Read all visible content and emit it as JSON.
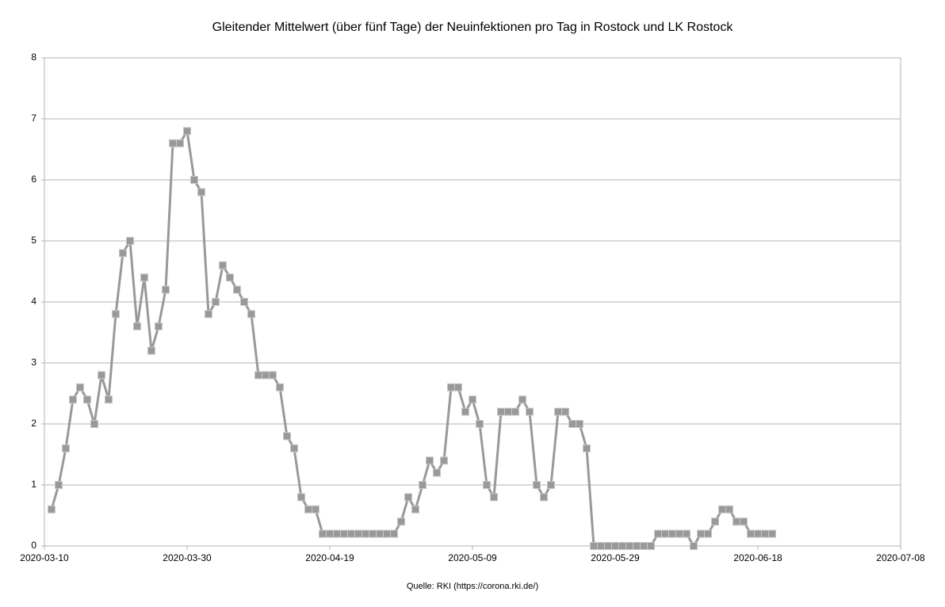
{
  "chart_data": {
    "type": "line",
    "title": "Gleitender Mittelwert (über fünf Tage) der Neuinfektionen pro Tag in Rostock und LK Rostock",
    "source": "Quelle: RKI (https://corona.rki.de/)",
    "x": [
      "2020-03-11",
      "2020-03-12",
      "2020-03-13",
      "2020-03-14",
      "2020-03-15",
      "2020-03-16",
      "2020-03-17",
      "2020-03-18",
      "2020-03-19",
      "2020-03-20",
      "2020-03-21",
      "2020-03-22",
      "2020-03-23",
      "2020-03-24",
      "2020-03-25",
      "2020-03-26",
      "2020-03-27",
      "2020-03-28",
      "2020-03-29",
      "2020-03-30",
      "2020-03-31",
      "2020-04-01",
      "2020-04-02",
      "2020-04-03",
      "2020-04-04",
      "2020-04-05",
      "2020-04-06",
      "2020-04-07",
      "2020-04-08",
      "2020-04-09",
      "2020-04-10",
      "2020-04-11",
      "2020-04-12",
      "2020-04-13",
      "2020-04-14",
      "2020-04-15",
      "2020-04-16",
      "2020-04-17",
      "2020-04-18",
      "2020-04-19",
      "2020-04-20",
      "2020-04-21",
      "2020-04-22",
      "2020-04-23",
      "2020-04-24",
      "2020-04-25",
      "2020-04-26",
      "2020-04-27",
      "2020-04-28",
      "2020-04-29",
      "2020-04-30",
      "2020-05-01",
      "2020-05-02",
      "2020-05-03",
      "2020-05-04",
      "2020-05-05",
      "2020-05-06",
      "2020-05-07",
      "2020-05-08",
      "2020-05-09",
      "2020-05-10",
      "2020-05-11",
      "2020-05-12",
      "2020-05-13",
      "2020-05-14",
      "2020-05-15",
      "2020-05-16",
      "2020-05-17",
      "2020-05-18",
      "2020-05-19",
      "2020-05-20",
      "2020-05-21",
      "2020-05-22",
      "2020-05-23",
      "2020-05-24",
      "2020-05-25",
      "2020-05-26",
      "2020-05-27",
      "2020-05-28",
      "2020-05-29",
      "2020-05-30",
      "2020-05-31",
      "2020-06-01",
      "2020-06-02",
      "2020-06-03",
      "2020-06-04",
      "2020-06-05",
      "2020-06-06",
      "2020-06-07",
      "2020-06-08",
      "2020-06-09",
      "2020-06-10",
      "2020-06-11",
      "2020-06-12",
      "2020-06-13",
      "2020-06-14",
      "2020-06-15",
      "2020-06-16",
      "2020-06-17",
      "2020-06-18",
      "2020-06-19",
      "2020-06-20"
    ],
    "values": [
      0.6,
      1.0,
      1.6,
      2.4,
      2.6,
      2.4,
      2.0,
      2.8,
      2.4,
      3.8,
      4.8,
      5.0,
      3.6,
      4.4,
      3.2,
      3.6,
      4.2,
      6.6,
      6.6,
      6.8,
      6.0,
      5.8,
      3.8,
      4.0,
      4.6,
      4.4,
      4.2,
      4.0,
      3.8,
      2.8,
      2.8,
      2.8,
      2.6,
      1.8,
      1.6,
      0.8,
      0.6,
      0.6,
      0.2,
      0.2,
      0.2,
      0.2,
      0.2,
      0.2,
      0.2,
      0.2,
      0.2,
      0.2,
      0.2,
      0.4,
      0.8,
      0.6,
      1.0,
      1.4,
      1.2,
      1.4,
      2.6,
      2.6,
      2.2,
      2.4,
      2.0,
      1.0,
      0.8,
      2.2,
      2.2,
      2.2,
      2.4,
      2.2,
      1.0,
      0.8,
      1.0,
      2.2,
      2.2,
      2.0,
      2.0,
      1.6,
      0,
      0,
      0,
      0,
      0,
      0,
      0,
      0,
      0,
      0.2,
      0.2,
      0.2,
      0.2,
      0.2,
      0,
      0.2,
      0.2,
      0.4,
      0.6,
      0.6,
      0.4,
      0.4,
      0.2,
      0.2,
      0.2,
      0.2
    ],
    "color": "#999999",
    "marker": "square",
    "xlim": [
      "2020-03-10",
      "2020-07-08"
    ],
    "xticks": [
      "2020-03-10",
      "2020-03-30",
      "2020-04-19",
      "2020-05-09",
      "2020-05-29",
      "2020-06-18",
      "2020-07-08"
    ],
    "ylim": [
      0,
      8
    ],
    "yticks": [
      0,
      1,
      2,
      3,
      4,
      5,
      6,
      7,
      8
    ],
    "grid": true
  }
}
